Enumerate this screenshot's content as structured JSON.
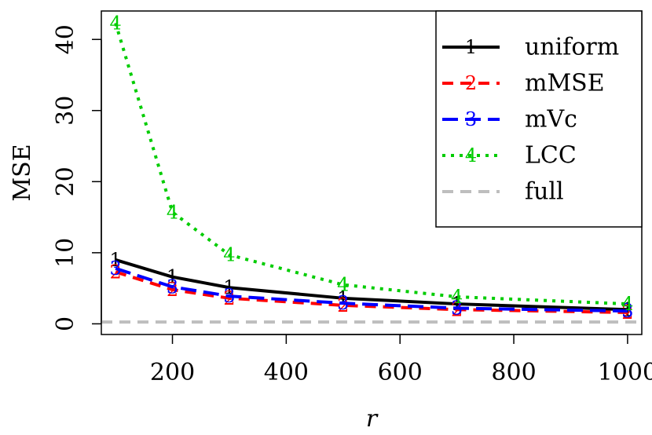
{
  "chart_data": {
    "type": "line",
    "xlabel": "r",
    "ylabel": "MSE",
    "xlim": [
      75,
      1025
    ],
    "ylim": [
      -1.5,
      44
    ],
    "xticks": [
      200,
      400,
      600,
      800,
      1000
    ],
    "yticks": [
      0,
      10,
      20,
      30,
      40
    ],
    "grid": false,
    "legend_position": "top-right",
    "x": [
      100,
      200,
      300,
      500,
      700,
      1000
    ],
    "series": [
      {
        "name": "uniform",
        "marker": "1",
        "color": "#000000",
        "dash": "solid",
        "values": [
          9.0,
          6.6,
          5.1,
          3.6,
          2.8,
          2.0
        ]
      },
      {
        "name": "mMSE",
        "marker": "2",
        "color": "#ff0000",
        "dash": "dashed",
        "values": [
          7.3,
          4.8,
          3.6,
          2.6,
          2.0,
          1.6
        ]
      },
      {
        "name": "mVc",
        "marker": "3",
        "color": "#0000ff",
        "dash": "longdash",
        "values": [
          7.8,
          5.2,
          3.9,
          2.9,
          2.2,
          1.8
        ]
      },
      {
        "name": "LCC",
        "marker": "4",
        "color": "#00cc00",
        "dash": "dotted",
        "values": [
          42.3,
          15.7,
          9.7,
          5.5,
          3.8,
          2.8
        ]
      },
      {
        "name": "full",
        "marker": "",
        "color": "#bebebe",
        "dash": "dashed",
        "hline": 0.25
      }
    ]
  }
}
